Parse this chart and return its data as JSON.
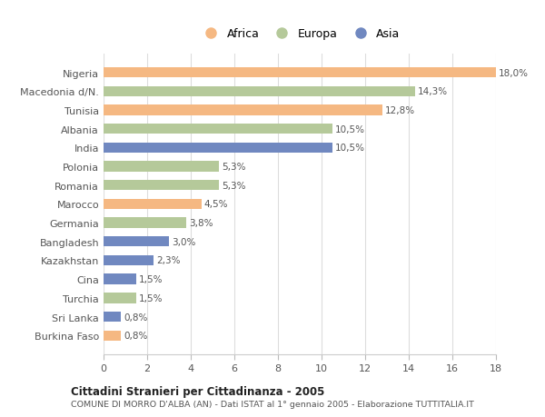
{
  "countries": [
    "Nigeria",
    "Macedonia d/N.",
    "Tunisia",
    "Albania",
    "India",
    "Polonia",
    "Romania",
    "Marocco",
    "Germania",
    "Bangladesh",
    "Kazakhstan",
    "Cina",
    "Turchia",
    "Sri Lanka",
    "Burkina Faso"
  ],
  "values": [
    18.0,
    14.3,
    12.8,
    10.5,
    10.5,
    5.3,
    5.3,
    4.5,
    3.8,
    3.0,
    2.3,
    1.5,
    1.5,
    0.8,
    0.8
  ],
  "continents": [
    "Africa",
    "Europa",
    "Africa",
    "Europa",
    "Asia",
    "Europa",
    "Europa",
    "Africa",
    "Europa",
    "Asia",
    "Asia",
    "Asia",
    "Europa",
    "Asia",
    "Africa"
  ],
  "labels": [
    "18,0%",
    "14,3%",
    "12,8%",
    "10,5%",
    "10,5%",
    "5,3%",
    "5,3%",
    "4,5%",
    "3,8%",
    "3,0%",
    "2,3%",
    "1,5%",
    "1,5%",
    "0,8%",
    "0,8%"
  ],
  "colors": {
    "Africa": "#F5B882",
    "Europa": "#B5C99A",
    "Asia": "#7088C0"
  },
  "legend_order": [
    "Africa",
    "Europa",
    "Asia"
  ],
  "xlim": [
    0,
    18
  ],
  "xticks": [
    0,
    2,
    4,
    6,
    8,
    10,
    12,
    14,
    16,
    18
  ],
  "title_bold": "Cittadini Stranieri per Cittadinanza - 2005",
  "subtitle": "COMUNE DI MORRO D'ALBA (AN) - Dati ISTAT al 1° gennaio 2005 - Elaborazione TUTTITALIA.IT",
  "bg_color": "#ffffff",
  "grid_color": "#dddddd",
  "bar_height": 0.55
}
